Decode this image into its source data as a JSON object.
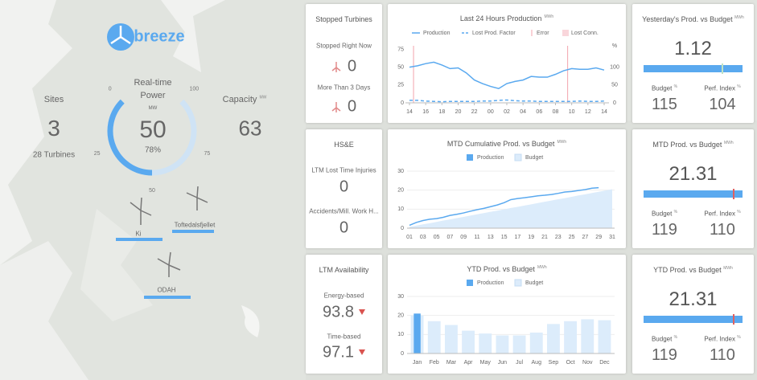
{
  "map": {
    "logo": "breeze",
    "sites": {
      "label": "Sites",
      "value": 3,
      "turbines": "28 Turbines"
    },
    "power": {
      "label": "Real-time Power",
      "unit": "MW",
      "value": 50,
      "percent": "78%",
      "gauge_lim": [
        0,
        100
      ],
      "gauge_ticks": [
        0,
        25,
        50,
        75,
        100
      ]
    },
    "capacity": {
      "label": "Capacity",
      "unit": "MW",
      "value": 63
    },
    "site_names": [
      "Ki",
      "Toftedalsfjellet",
      "ODAH"
    ]
  },
  "stopped": {
    "title": "Stopped Turbines",
    "items": [
      {
        "label": "Stopped Right Now",
        "value": 0
      },
      {
        "label": "More Than 3 Days",
        "value": 0
      }
    ]
  },
  "hse": {
    "title": "HS&E",
    "items": [
      {
        "label": "LTM Lost Time Injuries",
        "value": 0
      },
      {
        "label": "Accidents/Mill. Work H...",
        "value": 0
      }
    ]
  },
  "availability": {
    "title": "LTM Availability",
    "items": [
      {
        "label": "Energy-based",
        "value": 93.8
      },
      {
        "label": "Time-based",
        "value": 97.1
      }
    ]
  },
  "chart_data": [
    {
      "type": "line",
      "title": "Last 24 Hours Production",
      "unit": "MWh",
      "categories": [
        "14",
        null,
        "16",
        null,
        "18",
        null,
        "20",
        null,
        "22",
        null,
        "00",
        null,
        "02",
        null,
        "04",
        null,
        "06",
        null,
        "08",
        null,
        "10",
        null,
        "12",
        null,
        "14"
      ],
      "series": [
        {
          "name": "Production",
          "color": "#5aa9ef",
          "values": [
            50,
            52,
            55,
            57,
            53,
            48,
            49,
            42,
            32,
            27,
            23,
            20,
            27,
            30,
            32,
            37,
            36,
            36,
            40,
            45,
            48,
            47,
            47,
            49,
            46
          ]
        },
        {
          "name": "Lost Prod. Factor",
          "color": "#5aa9ef",
          "axis": "y2",
          "dashed": true,
          "values": [
            7,
            7,
            5,
            4,
            3,
            4,
            4,
            4,
            4,
            5,
            5,
            7,
            8,
            6,
            5,
            5,
            4,
            4,
            4,
            4,
            4,
            5,
            4,
            4,
            5
          ]
        }
      ],
      "errors": {
        "name": "Error",
        "color": "#f3a3ad",
        "x": [
          0.5,
          19.5
        ]
      },
      "lost_connection": {
        "name": "Lost Conn.",
        "color": "#f9d6db"
      },
      "ylim": [
        0,
        80
      ],
      "yticks": [
        0,
        25,
        50,
        75
      ],
      "y2lim": [
        0,
        160
      ],
      "y2ticks": [
        0,
        50,
        100
      ],
      "y2label": "%"
    },
    {
      "type": "area",
      "title": "MTD Cumulative Prod. vs Budget",
      "unit": "MWh",
      "categories": [
        "01",
        null,
        "03",
        null,
        "05",
        null,
        "07",
        null,
        "09",
        null,
        "11",
        null,
        "13",
        null,
        "15",
        null,
        "17",
        null,
        "19",
        null,
        "21",
        null,
        "23",
        null,
        "25",
        null,
        "27",
        null,
        "29",
        null,
        "31"
      ],
      "series": [
        {
          "name": "Production",
          "color": "#5aa9ef",
          "values": [
            1.5,
            3,
            4,
            4.7,
            5,
            5.7,
            6.7,
            7.3,
            8,
            8.9,
            9.7,
            10.4,
            11.3,
            12.2,
            13.4,
            15,
            15.6,
            16,
            16.5,
            17,
            17.3,
            17.7,
            18.3,
            19,
            19.3,
            19.8,
            20.3,
            21,
            21.3,
            null,
            null
          ]
        },
        {
          "name": "Budget",
          "color": "#dcecfb",
          "values": [
            0.7,
            1.3,
            2,
            2.6,
            3.3,
            4,
            4.6,
            5.3,
            5.9,
            6.6,
            7.3,
            7.9,
            8.6,
            9.2,
            9.9,
            10.6,
            11.2,
            11.9,
            12.5,
            13.2,
            13.9,
            14.5,
            15.2,
            15.8,
            16.5,
            17.2,
            17.8,
            18.5,
            19.1,
            19.8,
            20.5
          ]
        }
      ],
      "ylim": [
        0,
        30
      ],
      "yticks": [
        0,
        10,
        20,
        30
      ]
    },
    {
      "type": "bar",
      "title": "YTD Prod. vs Budget",
      "unit": "MWh",
      "categories": [
        "Jan",
        "Feb",
        "Mar",
        "Apr",
        "May",
        "Jun",
        "Jul",
        "Aug",
        "Sep",
        "Oct",
        "Nov",
        "Dec"
      ],
      "series": [
        {
          "name": "Production",
          "color": "#5aa9ef",
          "values": [
            21,
            null,
            null,
            null,
            null,
            null,
            null,
            null,
            null,
            null,
            null,
            null
          ]
        },
        {
          "name": "Budget",
          "color": "#dcecfb",
          "values": [
            20,
            17,
            15,
            12,
            10.5,
            9.5,
            9.5,
            11,
            15.5,
            17,
            18,
            17.5
          ]
        }
      ],
      "ylim": [
        0,
        30
      ],
      "yticks": [
        0,
        10,
        20,
        30
      ]
    }
  ],
  "kpis": [
    {
      "title": "Yesterday's Prod. vs Budget",
      "unit": "MWh",
      "value": 1.12,
      "budget_label": "Budget",
      "budget_unit": "%",
      "budget": 115,
      "perf_label": "Perf. Index",
      "perf_unit": "%",
      "perf": 104
    },
    {
      "title": "MTD Prod. vs Budget",
      "unit": "MWh",
      "value": 21.31,
      "budget_label": "Budget",
      "budget_unit": "%",
      "budget": 119,
      "perf_label": "Perf. Index",
      "perf_unit": "%",
      "perf": 110
    },
    {
      "title": "YTD Prod. vs Budget",
      "unit": "MWh",
      "value": 21.31,
      "budget_label": "Budget",
      "budget_unit": "%",
      "budget": 119,
      "perf_label": "Perf. Index",
      "perf_unit": "%",
      "perf": 110
    }
  ]
}
